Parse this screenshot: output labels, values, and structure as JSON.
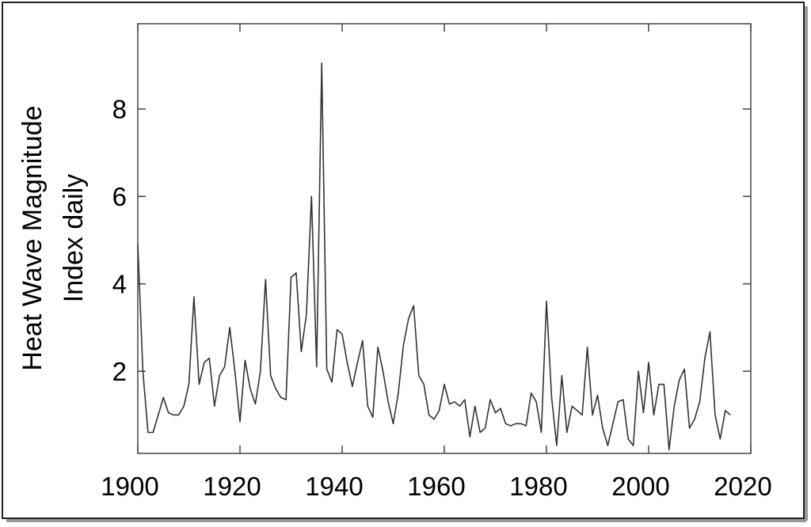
{
  "chart_data": {
    "type": "line",
    "ylabel": [
      "Heat Wave Magnitude",
      "Index daily"
    ],
    "x": [
      1900,
      1901,
      1902,
      1903,
      1904,
      1905,
      1906,
      1907,
      1908,
      1909,
      1910,
      1911,
      1912,
      1913,
      1914,
      1915,
      1916,
      1917,
      1918,
      1919,
      1920,
      1921,
      1922,
      1923,
      1924,
      1925,
      1926,
      1927,
      1928,
      1929,
      1930,
      1931,
      1932,
      1933,
      1934,
      1935,
      1936,
      1937,
      1938,
      1939,
      1940,
      1941,
      1942,
      1943,
      1944,
      1945,
      1946,
      1947,
      1948,
      1949,
      1950,
      1951,
      1952,
      1953,
      1954,
      1955,
      1956,
      1957,
      1958,
      1959,
      1960,
      1961,
      1962,
      1963,
      1964,
      1965,
      1966,
      1967,
      1968,
      1969,
      1970,
      1971,
      1972,
      1973,
      1974,
      1975,
      1976,
      1977,
      1978,
      1979,
      1980,
      1981,
      1982,
      1983,
      1984,
      1985,
      1986,
      1987,
      1988,
      1989,
      1990,
      1991,
      1992,
      1993,
      1994,
      1995,
      1996,
      1997,
      1998,
      1999,
      2000,
      2001,
      2002,
      2003,
      2004,
      2005,
      2006,
      2007,
      2008,
      2009,
      2010,
      2011,
      2012,
      2013,
      2014,
      2015,
      2016
    ],
    "series": [
      {
        "color": "#333333",
        "values": [
          4.9,
          2.0,
          0.6,
          0.6,
          1.0,
          1.4,
          1.05,
          1.0,
          1.0,
          1.2,
          1.7,
          3.7,
          1.7,
          2.2,
          2.3,
          1.2,
          1.9,
          2.1,
          3.0,
          2.0,
          0.85,
          2.25,
          1.6,
          1.25,
          2.0,
          4.1,
          1.9,
          1.6,
          1.4,
          1.35,
          4.15,
          4.25,
          2.45,
          3.3,
          6.0,
          2.1,
          9.05,
          2.05,
          1.75,
          2.95,
          2.85,
          2.2,
          1.65,
          2.2,
          2.7,
          1.2,
          0.95,
          2.55,
          2.0,
          1.3,
          0.8,
          1.5,
          2.6,
          3.2,
          3.5,
          1.9,
          1.7,
          1.0,
          0.9,
          1.1,
          1.7,
          1.25,
          1.3,
          1.2,
          1.35,
          0.5,
          1.2,
          0.6,
          0.7,
          1.35,
          1.05,
          1.15,
          0.8,
          0.75,
          0.8,
          0.8,
          0.75,
          1.5,
          1.3,
          0.6,
          3.6,
          1.4,
          0.3,
          1.9,
          0.6,
          1.2,
          1.1,
          1.0,
          2.55,
          1.0,
          1.45,
          0.7,
          0.3,
          0.8,
          1.3,
          1.35,
          0.45,
          0.3,
          2.0,
          1.05,
          2.2,
          1.0,
          1.7,
          1.7,
          0.2,
          1.2,
          1.8,
          2.05,
          0.7,
          0.9,
          1.3,
          2.3,
          2.9,
          1.0,
          0.45,
          1.1,
          1.0
        ]
      }
    ],
    "xlim": [
      1900,
      2020
    ],
    "xticks": [
      1900,
      1920,
      1940,
      1960,
      1980,
      2000,
      2020
    ],
    "ylim": [
      0.12,
      9.95
    ],
    "yticks": [
      2,
      4,
      6,
      8
    ]
  }
}
